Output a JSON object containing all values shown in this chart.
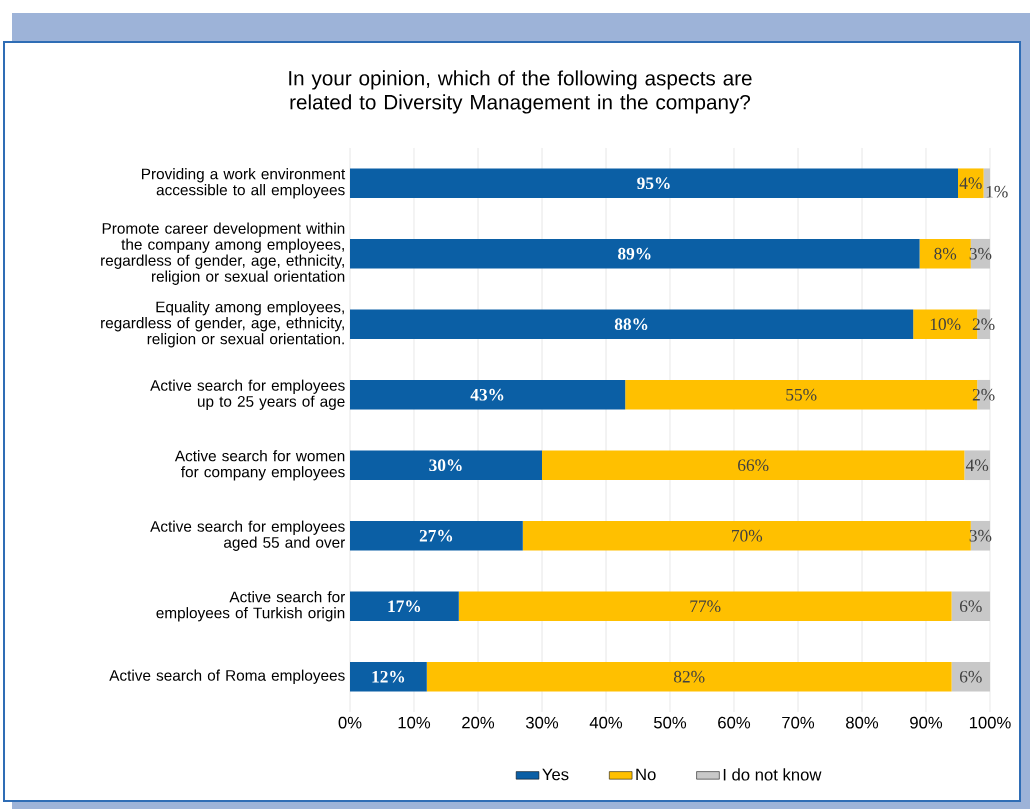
{
  "chart_data": {
    "type": "bar",
    "orientation": "horizontal",
    "stacked": true,
    "title": "In your opinion, which of the following aspects are related to Diversity Management in the company?",
    "categories": [
      "Providing a work environment accessible to all employees",
      "Promote career development within the company among employees, regardless of gender, age, ethnicity, religion or sexual orientation",
      "Equality among employees, regardless of gender, age, ethnicity, religion or sexual orientation.",
      "Active search for employees up to 25 years of age",
      "Active search for women for company employees",
      "Active search for employees aged 55 and over",
      "Active search for employees of Turkish origin",
      "Active search of Roma employees"
    ],
    "series": [
      {
        "name": "Yes",
        "color": "#0b5fa5",
        "values": [
          95,
          89,
          88,
          43,
          30,
          27,
          17,
          12
        ],
        "value_labels": [
          "95%",
          "89%",
          "88%",
          "43%",
          "30%",
          "27%",
          "17%",
          "12%"
        ]
      },
      {
        "name": "No",
        "color": "#ffc000",
        "values": [
          4,
          8,
          10,
          55,
          66,
          70,
          77,
          82
        ],
        "value_labels": [
          "4%",
          "8%",
          "10%",
          "55%",
          "66%",
          "70%",
          "77%",
          "82%"
        ]
      },
      {
        "name": "I do not know",
        "color": "#c8c8c8",
        "values": [
          1,
          3,
          2,
          2,
          4,
          3,
          6,
          6
        ],
        "value_labels": [
          "1%",
          "3%",
          "2%",
          "2%",
          "4%",
          "3%",
          "6%",
          "6%"
        ]
      }
    ],
    "xlim": [
      0,
      100
    ],
    "xticks": [
      {
        "value": 0,
        "label": "0%"
      },
      {
        "value": 10,
        "label": "10%"
      },
      {
        "value": 20,
        "label": "20%"
      },
      {
        "value": 30,
        "label": "30%"
      },
      {
        "value": 40,
        "label": "40%"
      },
      {
        "value": 50,
        "label": "50%"
      },
      {
        "value": 60,
        "label": "60%"
      },
      {
        "value": 70,
        "label": "70%"
      },
      {
        "value": 80,
        "label": "80%"
      },
      {
        "value": 90,
        "label": "90%"
      },
      {
        "value": 100,
        "label": "100%"
      }
    ],
    "grid": "x",
    "legend": "bottom"
  }
}
